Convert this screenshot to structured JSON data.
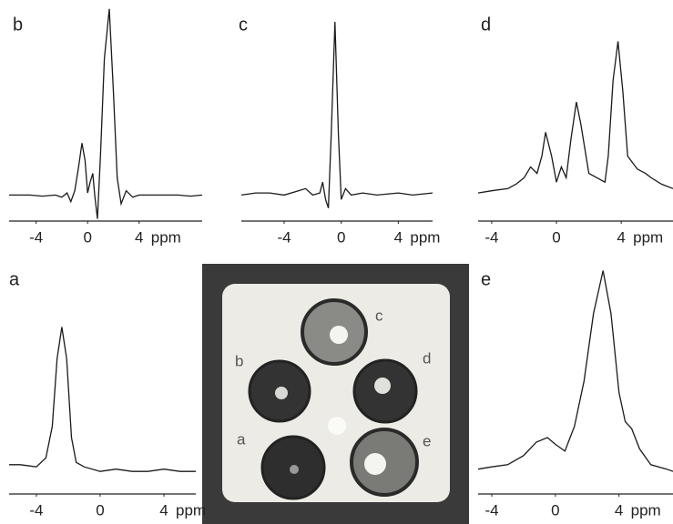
{
  "chart_data": [
    {
      "type": "line",
      "title": "b",
      "xlabel": "ppm",
      "color": "#1a1a1a",
      "x": [
        -6.1,
        -4.5,
        -3.5,
        -2.5,
        -2,
        -1.6,
        -1.3,
        -1,
        -0.7,
        -0.44,
        -0.2,
        0,
        0.2,
        0.4,
        0.55,
        0.76,
        1.0,
        1.3,
        1.68,
        2.0,
        2.3,
        2.6,
        3.0,
        3.5,
        4,
        5,
        6,
        7,
        8,
        8.9
      ],
      "values": [
        12,
        12,
        11.5,
        12,
        11,
        13,
        9,
        14,
        25,
        36,
        28,
        13,
        18,
        22,
        12,
        1,
        30,
        75,
        98,
        60,
        20,
        8,
        14,
        11,
        12,
        12,
        12,
        12,
        11.5,
        12
      ],
      "xlim": [
        -6.1,
        8.9
      ],
      "ylim": [
        0,
        100
      ],
      "xticks": [
        -4,
        0,
        4
      ]
    },
    {
      "type": "line",
      "title": "c",
      "xlabel": "ppm",
      "color": "#1a1a1a",
      "x": [
        -7,
        -6,
        -5,
        -4,
        -3,
        -2.5,
        -2,
        -1.5,
        -1.3,
        -1.1,
        -0.9,
        -0.7,
        -0.44,
        -0.2,
        0,
        0.3,
        0.7,
        1.5,
        2.5,
        4,
        5,
        6.4
      ],
      "values": [
        12,
        13,
        13,
        12,
        14,
        15,
        12,
        13,
        18,
        10,
        6,
        40,
        92,
        40,
        10,
        15,
        12,
        13,
        12,
        13,
        12,
        13
      ],
      "xlim": [
        -7,
        6.4
      ],
      "ylim": [
        0,
        100
      ],
      "xticks": [
        -4,
        0,
        4
      ]
    },
    {
      "type": "line",
      "title": "d",
      "xlabel": "ppm",
      "color": "#1a1a1a",
      "x": [
        -4.84,
        -4,
        -3,
        -2.5,
        -2,
        -1.6,
        -1.2,
        -0.9,
        -0.67,
        -0.3,
        0,
        0.3,
        0.6,
        0.9,
        1.23,
        1.5,
        2,
        2.5,
        3,
        3.2,
        3.5,
        3.8,
        4.1,
        4.4,
        5,
        5.5,
        5.85,
        6.5,
        7.2
      ],
      "values": [
        13,
        14,
        15,
        17,
        20,
        25,
        22,
        30,
        41,
        30,
        18,
        25,
        20,
        38,
        55,
        45,
        22,
        20,
        18,
        30,
        65,
        83,
        60,
        30,
        24,
        22,
        20,
        17,
        15
      ],
      "xlim": [
        -4.84,
        7.2
      ],
      "ylim": [
        0,
        100
      ],
      "xticks": [
        -4,
        0,
        4
      ]
    },
    {
      "type": "line",
      "title": "a",
      "xlabel": "ppm",
      "color": "#1a1a1a",
      "x": [
        -5.71,
        -5,
        -4,
        -3.4,
        -3,
        -2.7,
        -2.4,
        -2.1,
        -1.8,
        -1.5,
        -1,
        0,
        1,
        2,
        3,
        4,
        5,
        6
      ],
      "values": [
        13,
        13,
        12,
        16,
        30,
        60,
        74,
        60,
        25,
        14,
        12,
        10,
        11,
        10,
        10,
        11,
        10,
        10
      ],
      "xlim": [
        -5.71,
        6.0
      ],
      "ylim": [
        0,
        100
      ],
      "xticks": [
        -4,
        0,
        4
      ]
    },
    {
      "type": "line",
      "title": "e",
      "xlabel": "ppm",
      "color": "#1a1a1a",
      "x": [
        -4.86,
        -4,
        -3,
        -2,
        -1.2,
        -0.5,
        0,
        0.6,
        1.2,
        1.8,
        2.4,
        3.0,
        3.5,
        4,
        4.4,
        4.8,
        5.3,
        6,
        7,
        7.4
      ],
      "values": [
        11,
        12,
        13,
        17,
        23,
        25,
        22,
        19,
        30,
        50,
        80,
        99,
        80,
        45,
        32,
        29,
        20,
        13,
        11,
        10
      ],
      "xlim": [
        -4.86,
        7.4
      ],
      "ylim": [
        0,
        100
      ],
      "xticks": [
        -4,
        0,
        4
      ]
    }
  ],
  "phantom": {
    "labels": [
      "c",
      "b",
      "d",
      "a",
      "e"
    ]
  }
}
